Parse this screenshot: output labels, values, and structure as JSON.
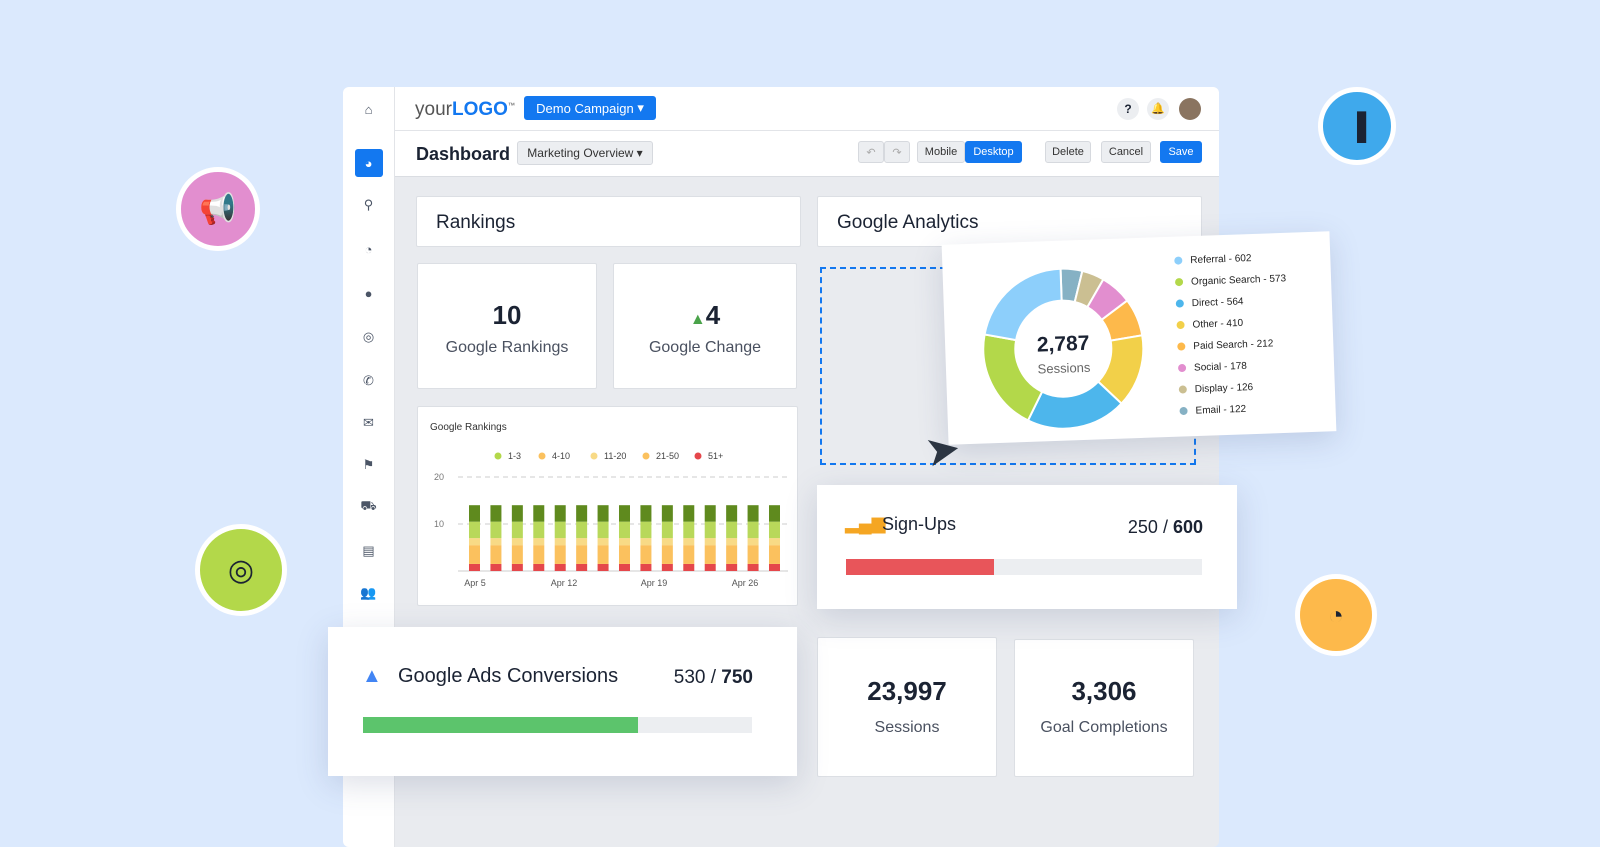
{
  "topbar": {
    "logo_light": "your",
    "logo_bold": "LOGO",
    "logo_tm": "™",
    "campaign": "Demo Campaign",
    "help": "?"
  },
  "subbar": {
    "title": "Dashboard",
    "view": "Marketing Overview",
    "mobile": "Mobile",
    "desktop": "Desktop",
    "delete": "Delete",
    "cancel": "Cancel",
    "save": "Save"
  },
  "rankings": {
    "title": "Rankings",
    "stat1_value": "10",
    "stat1_label": "Google Rankings",
    "stat2_value": "4",
    "stat2_label": "Google Change"
  },
  "analytics": {
    "title": "Google Analytics"
  },
  "chart_data": [
    {
      "type": "bar",
      "stacked": true,
      "title": "Google Rankings",
      "ylim": [
        0,
        20
      ],
      "yticks": [
        "10",
        "20"
      ],
      "xticks": [
        "Apr 5",
        "Apr 12",
        "Apr 19",
        "Apr 26"
      ],
      "grid": true,
      "legend": "top",
      "categories": [
        "1",
        "2",
        "3",
        "4",
        "5",
        "6",
        "7",
        "8",
        "9",
        "10",
        "11",
        "12",
        "13",
        "14",
        "15"
      ],
      "series": [
        {
          "name": "51+",
          "color": "#e5474b",
          "value": 1.5
        },
        {
          "name": "21-50",
          "color": "#fbc15e",
          "value": 4
        },
        {
          "name": "11-20",
          "color": "#f8da86",
          "value": 1.5
        },
        {
          "name": "4-10",
          "color": "#b8d85a",
          "value": 3.5
        },
        {
          "name": "1-3",
          "color": "#5f8a1e",
          "value": 3.5
        }
      ]
    },
    {
      "type": "pie",
      "donut": true,
      "center_value": "2,787",
      "center_label": "Sessions",
      "legend": "right",
      "slices": [
        {
          "label": "Referral - 602",
          "value": 602,
          "color": "#8dcffb"
        },
        {
          "label": "Organic Search - 573",
          "value": 573,
          "color": "#b3d84a"
        },
        {
          "label": "Direct - 564",
          "value": 564,
          "color": "#4db6ec"
        },
        {
          "label": "Other - 410",
          "value": 410,
          "color": "#f2d049"
        },
        {
          "label": "Paid Search - 212",
          "value": 212,
          "color": "#fdb94b"
        },
        {
          "label": "Social - 178",
          "value": 178,
          "color": "#e28ecf"
        },
        {
          "label": "Display - 126",
          "value": 126,
          "color": "#cbbf92"
        },
        {
          "label": "Email - 122",
          "value": 122,
          "color": "#86b1c4"
        }
      ]
    }
  ],
  "signups": {
    "title": "Sign-Ups",
    "current": "250",
    "sep": " / ",
    "goal": "600",
    "progress": 0.4167,
    "color": "#e8555a"
  },
  "ads": {
    "title": "Google Ads Conversions",
    "current": "530",
    "sep": " / ",
    "goal": "750",
    "progress": 0.7067,
    "color": "#5cc46c"
  },
  "sessions": {
    "value": "23,997",
    "label": "Sessions"
  },
  "goals": {
    "value": "3,306",
    "label": "Goal Completions"
  }
}
